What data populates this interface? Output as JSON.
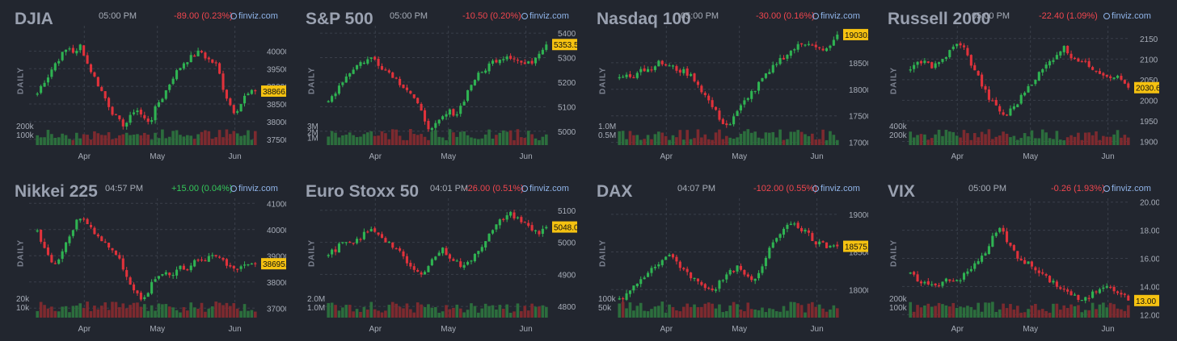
{
  "colors": {
    "up": "#2fb352",
    "down": "#e0323b",
    "price_tag": "#f5c211",
    "source": "#8fb3e8",
    "positive": "#34c759",
    "negative": "#f0464e"
  },
  "source_label": "finviz.com",
  "period_label": "DAILY",
  "chart_data": [
    {
      "type": "candlestick",
      "title": "DJIA",
      "time": "05:00 PM",
      "change": "-89.00 (0.23%)",
      "change_sign": "negative",
      "price_label": "38866.",
      "last": 38866,
      "ylim": [
        37380,
        40650
      ],
      "yticks": [
        "40000",
        "39500",
        "39000",
        "38500",
        "38000",
        "37500"
      ],
      "volume_ticks": [
        "200k",
        "100k"
      ],
      "months": [
        "Apr",
        "May",
        "Jun"
      ],
      "series": [
        38800,
        39100,
        39300,
        39600,
        39800,
        40000,
        40100,
        39900,
        40200,
        39700,
        39400,
        39100,
        38800,
        38500,
        38200,
        38000,
        37900,
        38100,
        38400,
        38200,
        38000,
        38100,
        38500,
        38700,
        39000,
        39300,
        39500,
        39700,
        39800,
        39900,
        40000,
        39800,
        39700,
        39600,
        39000,
        38600,
        38300,
        38400,
        38700,
        38800,
        38866
      ]
    },
    {
      "type": "candlestick",
      "title": "S&P 500",
      "time": "05:00 PM",
      "change": "-10.50 (0.20%)",
      "change_sign": "negative",
      "price_label": "5353.5",
      "last": 5353.5,
      "ylim": [
        4950,
        5420
      ],
      "yticks": [
        "5400",
        "5300",
        "5200",
        "5100",
        "5000"
      ],
      "volume_ticks": [
        "3M",
        "2M",
        "1M"
      ],
      "months": [
        "Apr",
        "May",
        "Jun"
      ],
      "series": [
        5120,
        5160,
        5200,
        5230,
        5260,
        5280,
        5290,
        5300,
        5270,
        5250,
        5230,
        5200,
        5180,
        5150,
        5100,
        5050,
        5000,
        5030,
        5060,
        5080,
        5070,
        5120,
        5180,
        5220,
        5240,
        5270,
        5290,
        5300,
        5310,
        5300,
        5280,
        5270,
        5290,
        5330,
        5353.5
      ]
    },
    {
      "type": "candlestick",
      "title": "Nasdaq 100",
      "time": "05:00 PM",
      "change": "-30.00 (0.16%)",
      "change_sign": "negative",
      "price_label": "19030.",
      "last": 19030,
      "ylim": [
        16980,
        19150
      ],
      "yticks": [
        "18500",
        "18000",
        "17500",
        "17000"
      ],
      "volume_ticks": [
        "1.0M",
        "0.5M"
      ],
      "months": [
        "Apr",
        "May",
        "Jun"
      ],
      "series": [
        18200,
        18300,
        18250,
        18400,
        18350,
        18450,
        18500,
        18450,
        18400,
        18350,
        18300,
        18200,
        18000,
        17800,
        17600,
        17400,
        17300,
        17500,
        17700,
        17900,
        18000,
        18200,
        18300,
        18500,
        18600,
        18700,
        18800,
        18850,
        18900,
        18800,
        18700,
        18800,
        19030
      ]
    },
    {
      "type": "candlestick",
      "title": "Russell 2000",
      "time": "05:00 PM",
      "change": "-22.40 (1.09%)",
      "change_sign": "negative",
      "price_label": "2030.6",
      "last": 2030.6,
      "ylim": [
        1895,
        2175
      ],
      "yticks": [
        "2150",
        "2100",
        "2050",
        "2000",
        "1950",
        "1900"
      ],
      "volume_ticks": [
        "400k",
        "200k"
      ],
      "months": [
        "Apr",
        "May",
        "Jun"
      ],
      "series": [
        2070,
        2090,
        2100,
        2080,
        2090,
        2110,
        2130,
        2140,
        2100,
        2070,
        2030,
        2000,
        1980,
        1960,
        1980,
        2000,
        2030,
        2050,
        2070,
        2090,
        2110,
        2130,
        2110,
        2100,
        2090,
        2080,
        2070,
        2060,
        2060,
        2050,
        2030.6
      ]
    },
    {
      "type": "candlestick",
      "title": "Nikkei 225",
      "time": "04:57 PM",
      "change": "+15.00 (0.04%)",
      "change_sign": "positive",
      "price_label": "38695.",
      "last": 38695,
      "ylim": [
        36700,
        41100
      ],
      "yticks": [
        "41000",
        "40000",
        "39000",
        "38000",
        "37000"
      ],
      "volume_ticks": [
        "20k",
        "10k"
      ],
      "months": [
        "Apr",
        "May",
        "Jun"
      ],
      "series": [
        39900,
        39300,
        38700,
        38800,
        39600,
        40200,
        40500,
        40100,
        39800,
        39500,
        39200,
        38800,
        38200,
        37600,
        37200,
        37800,
        38200,
        38400,
        38300,
        38600,
        38500,
        38900,
        38800,
        38900,
        39000,
        38700,
        38500,
        38600,
        38700,
        38695
      ]
    },
    {
      "type": "candlestick",
      "title": "Euro Stoxx 50",
      "time": "04:01 PM",
      "change": "-26.00 (0.51%)",
      "change_sign": "negative",
      "price_label": "5048.0",
      "last": 5048,
      "ylim": [
        4770,
        5130
      ],
      "yticks": [
        "5100",
        "5000",
        "4900",
        "4800"
      ],
      "volume_ticks": [
        "2.0M",
        "1.0M"
      ],
      "months": [
        "Apr",
        "May",
        "Jun"
      ],
      "series": [
        4960,
        4980,
        5000,
        4990,
        5010,
        5030,
        5040,
        5020,
        5000,
        4980,
        4950,
        4920,
        4900,
        4920,
        4950,
        4980,
        4960,
        4940,
        4920,
        4950,
        4980,
        5010,
        5040,
        5070,
        5090,
        5080,
        5060,
        5040,
        5030,
        5048
      ]
    },
    {
      "type": "candlestick",
      "title": "DAX",
      "time": "04:07 PM",
      "change": "-102.00 (0.55%)",
      "change_sign": "negative",
      "price_label": "18575.",
      "last": 18575,
      "ylim": [
        17650,
        19180
      ],
      "yticks": [
        "19000",
        "18500",
        "18000"
      ],
      "volume_ticks": [
        "100k",
        "50k"
      ],
      "months": [
        "Apr",
        "May",
        "Jun"
      ],
      "series": [
        17850,
        17950,
        18050,
        18150,
        18250,
        18350,
        18450,
        18400,
        18300,
        18200,
        18100,
        18050,
        18000,
        18100,
        18200,
        18300,
        18200,
        18100,
        18200,
        18500,
        18700,
        18800,
        18900,
        18850,
        18750,
        18650,
        18600,
        18550,
        18575
      ]
    },
    {
      "type": "candlestick",
      "title": "VIX",
      "time": "05:00 PM",
      "change": "-0.26 (1.93%)",
      "change_sign": "negative",
      "price_label": "13.00",
      "last": 13.0,
      "ylim": [
        11.9,
        20.1
      ],
      "yticks": [
        "20.00",
        "18.00",
        "16.00",
        "14.00",
        "12.00"
      ],
      "volume_ticks": [
        "200k",
        "100k"
      ],
      "months": [
        "Apr",
        "May",
        "Jun"
      ],
      "series": [
        14.8,
        14.5,
        14.2,
        14.0,
        14.3,
        14.6,
        14.4,
        14.7,
        15.2,
        15.8,
        16.5,
        17.5,
        18.2,
        17.0,
        16.3,
        15.8,
        15.5,
        15.0,
        14.6,
        14.3,
        13.9,
        13.6,
        13.2,
        12.9,
        13.4,
        13.8,
        14.2,
        13.9,
        13.5,
        13.0
      ]
    }
  ]
}
